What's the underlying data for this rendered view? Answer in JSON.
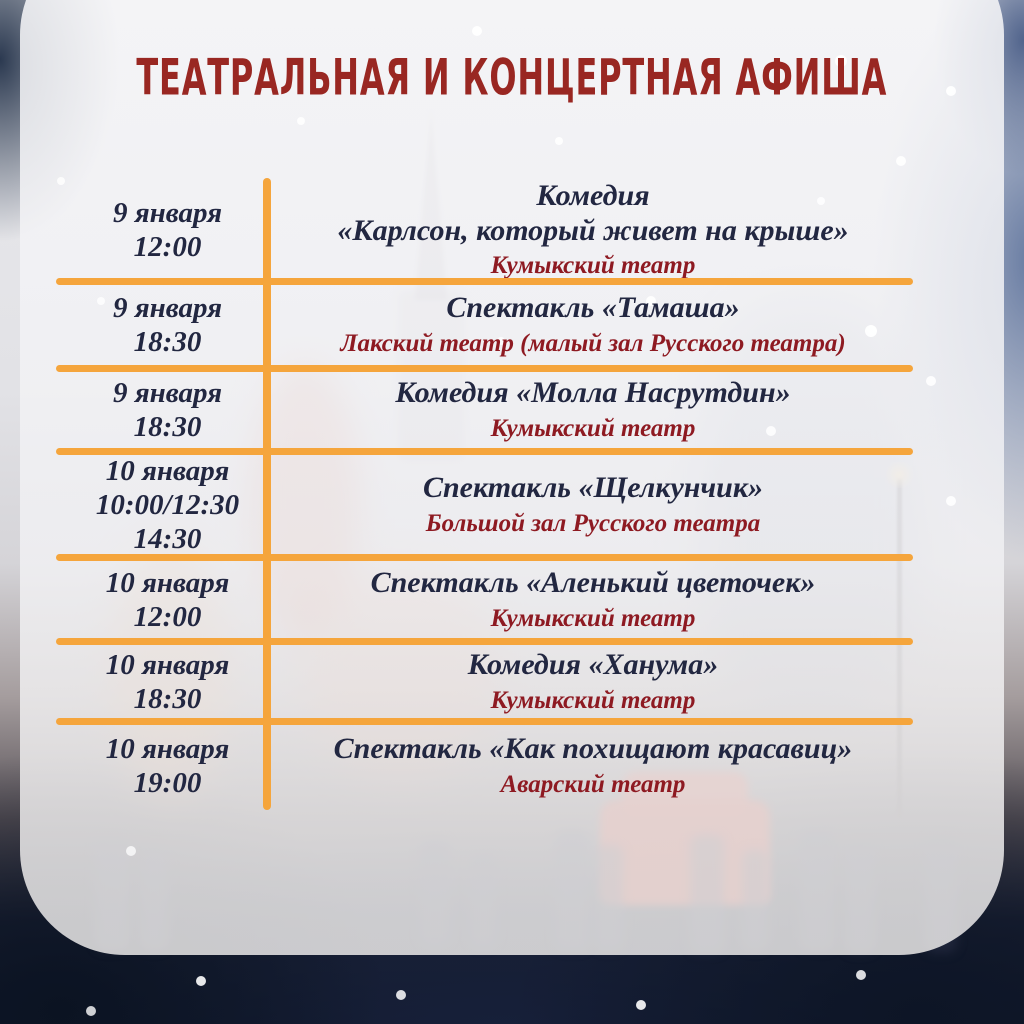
{
  "poster": {
    "title": "Театральная и концертная афиша",
    "colors": {
      "accent_orange": "#F5A53C",
      "title_red": "#992722",
      "venue_red": "#8E1A22",
      "text_dark": "#222741"
    },
    "schedule": {
      "rows": [
        {
          "date": "9 января\n12:00",
          "title": "Комедия\n«Карлсон, который живет на крыше»",
          "venue": "Кумыкский театр"
        },
        {
          "date": "9 января\n18:30",
          "title": "Спектакль «Тамаша»",
          "venue": "Лакский театр (малый зал Русского театра)"
        },
        {
          "date": "9 января\n18:30",
          "title": "Комедия «Молла Насрутдин»",
          "venue": "Кумыкский театр"
        },
        {
          "date": "10 января\n10:00/12:30\n14:30",
          "title": "Спектакль «Щелкунчик»",
          "venue": "Большой зал Русского театра"
        },
        {
          "date": "10 января\n12:00",
          "title": "Спектакль «Аленький цветочек»",
          "venue": "Кумыкский театр"
        },
        {
          "date": "10 января\n18:30",
          "title": "Комедия «Ханума»",
          "venue": "Кумыкский театр"
        },
        {
          "date": "10 января\n19:00",
          "title": "Спектакль «Как похищают красавиц»",
          "venue": "Аварский театр"
        }
      ]
    }
  }
}
